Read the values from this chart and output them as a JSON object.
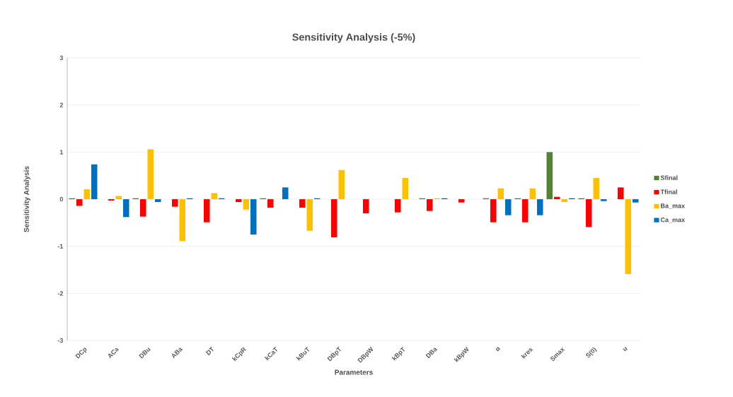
{
  "chart_data": {
    "type": "bar",
    "title": "Sensitivity Analysis (-5%)",
    "xlabel": "Parameters",
    "ylabel": "Sensitivity Analysis",
    "categories": [
      "DCp",
      "ACa",
      "DBu",
      "ABa",
      "DT",
      "kCpR",
      "kCaT",
      "kBuT",
      "DBpT",
      "DBpW",
      "kBpT",
      "DBa",
      "kBpW",
      "α",
      "kres",
      "Smax",
      "S(0)",
      "u"
    ],
    "series": [
      {
        "name": "Sfinal",
        "color": "#548235",
        "values": [
          0.02,
          0,
          0.02,
          0,
          0,
          0,
          0.02,
          0,
          0,
          0,
          0,
          0.02,
          0,
          0.02,
          0.02,
          1.0,
          0.02,
          0
        ]
      },
      {
        "name": "Tfinal",
        "color": "#ff0000",
        "values": [
          -0.14,
          -0.03,
          -0.37,
          -0.16,
          -0.49,
          -0.06,
          -0.18,
          -0.18,
          -0.81,
          -0.3,
          -0.28,
          -0.25,
          -0.07,
          -0.49,
          -0.49,
          0.05,
          -0.59,
          0.25
        ]
      },
      {
        "name": "Ba_max",
        "color": "#ffc000",
        "values": [
          0.21,
          0.07,
          1.06,
          -0.89,
          0.13,
          -0.22,
          0,
          -0.67,
          0.62,
          0,
          0.45,
          0.02,
          0,
          0.23,
          0.23,
          -0.06,
          0.45,
          -1.59
        ]
      },
      {
        "name": "Ca_max",
        "color": "#0070c0",
        "values": [
          0.74,
          -0.38,
          -0.06,
          0.02,
          0.02,
          -0.75,
          0.25,
          0.02,
          0,
          0,
          0,
          0.02,
          0,
          -0.34,
          -0.34,
          0.02,
          -0.04,
          -0.07
        ]
      }
    ],
    "ylim": [
      -3,
      3
    ],
    "yticks": [
      -3,
      -2,
      -1,
      0,
      1,
      2,
      3
    ],
    "grid": "y",
    "legend": "right"
  }
}
